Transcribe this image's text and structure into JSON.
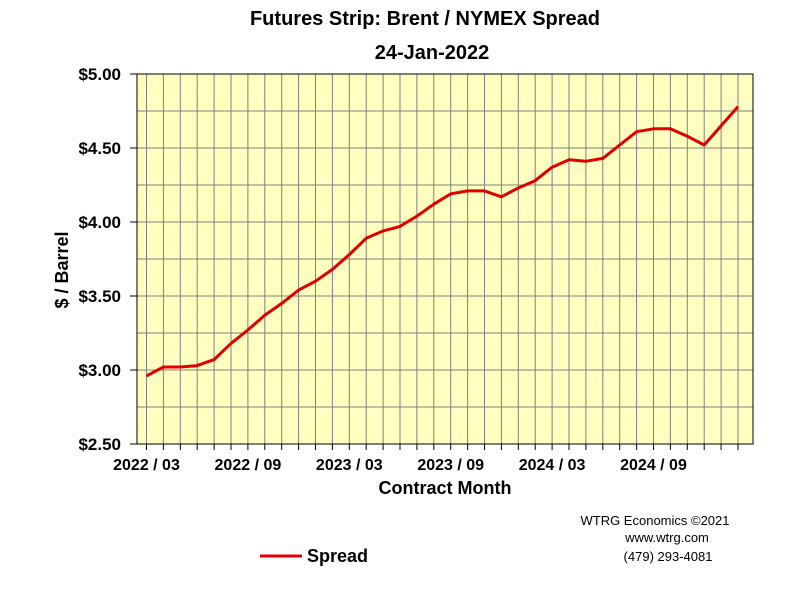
{
  "chart_data": {
    "type": "line",
    "title": "Futures Strip: Brent / NYMEX Spread",
    "subtitle": "24-Jan-2022",
    "xlabel": "Contract Month",
    "ylabel": "$ / Barrel",
    "ylim": [
      2.5,
      5.0
    ],
    "yticks": [
      2.5,
      3.0,
      3.5,
      4.0,
      4.5,
      5.0
    ],
    "ytick_labels": [
      "$2.50",
      "$3.00",
      "$3.50",
      "$4.00",
      "$4.50",
      "$5.00"
    ],
    "xtick_labels": [
      {
        "label": "2022 / 03",
        "index": 0
      },
      {
        "label": "2022 / 09",
        "index": 6
      },
      {
        "label": "2023 / 03",
        "index": 12
      },
      {
        "label": "2023 / 09",
        "index": 18
      },
      {
        "label": "2024 / 03",
        "index": 24
      },
      {
        "label": "2024 / 09",
        "index": 30
      }
    ],
    "grid": true,
    "background": "#ffffc0",
    "legend_position": "bottom-left",
    "series": [
      {
        "name": "Spread",
        "color": "#e00000",
        "values": [
          2.96,
          3.02,
          3.02,
          3.03,
          3.07,
          3.18,
          3.27,
          3.37,
          3.45,
          3.54,
          3.6,
          3.68,
          3.78,
          3.89,
          3.94,
          3.97,
          4.04,
          4.12,
          4.19,
          4.21,
          4.21,
          4.17,
          4.23,
          4.28,
          4.37,
          4.42,
          4.41,
          4.43,
          4.52,
          4.61,
          4.63,
          4.63,
          4.58,
          4.52,
          4.65,
          4.78
        ]
      }
    ]
  },
  "credits": [
    "WTRG Economics ©2021",
    "www.wtrg.com",
    "(479) 293-4081"
  ]
}
